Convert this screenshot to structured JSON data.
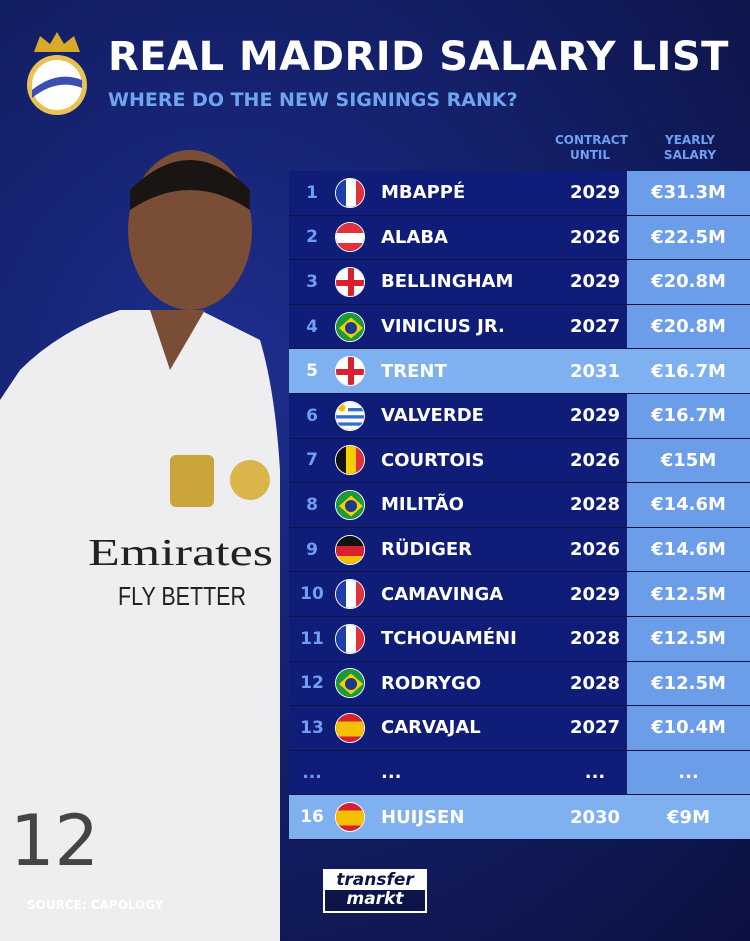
{
  "header": {
    "title": "REAL MADRID SALARY LIST",
    "subtitle": "WHERE DO THE NEW SIGNINGS RANK?"
  },
  "columns": {
    "contract": "CONTRACT UNTIL",
    "salary": "YEARLY SALARY"
  },
  "rows": [
    {
      "rank": "1",
      "flag": "france",
      "name": "MBAPPÉ",
      "contract": "2029",
      "salary": "€31.3M"
    },
    {
      "rank": "2",
      "flag": "austria",
      "name": "ALABA",
      "contract": "2026",
      "salary": "€22.5M"
    },
    {
      "rank": "3",
      "flag": "england",
      "name": "BELLINGHAM",
      "contract": "2029",
      "salary": "€20.8M"
    },
    {
      "rank": "4",
      "flag": "brazil",
      "name": "VINICIUS JR.",
      "contract": "2027",
      "salary": "€20.8M"
    },
    {
      "rank": "5",
      "flag": "england",
      "name": "TRENT",
      "contract": "2031",
      "salary": "€16.7M",
      "highlight": true
    },
    {
      "rank": "6",
      "flag": "uruguay",
      "name": "VALVERDE",
      "contract": "2029",
      "salary": "€16.7M"
    },
    {
      "rank": "7",
      "flag": "belgium",
      "name": "COURTOIS",
      "contract": "2026",
      "salary": "€15M"
    },
    {
      "rank": "8",
      "flag": "brazil",
      "name": "MILITÃO",
      "contract": "2028",
      "salary": "€14.6M"
    },
    {
      "rank": "9",
      "flag": "germany",
      "name": "RÜDIGER",
      "contract": "2026",
      "salary": "€14.6M"
    },
    {
      "rank": "10",
      "flag": "france",
      "name": "CAMAVINGA",
      "contract": "2029",
      "salary": "€12.5M"
    },
    {
      "rank": "11",
      "flag": "france",
      "name": "TCHOUAMÉNI",
      "contract": "2028",
      "salary": "€12.5M"
    },
    {
      "rank": "12",
      "flag": "brazil",
      "name": "RODRYGO",
      "contract": "2028",
      "salary": "€12.5M"
    },
    {
      "rank": "13",
      "flag": "spain",
      "name": "CARVAJAL",
      "contract": "2027",
      "salary": "€10.4M"
    },
    {
      "rank": "...",
      "flag": "",
      "name": "...",
      "contract": "...",
      "salary": "..."
    },
    {
      "rank": "16",
      "flag": "spain",
      "name": "HUIJSEN",
      "contract": "2030",
      "salary": "€9M",
      "highlight": true
    }
  ],
  "footer": {
    "source": "SOURCE: CAPOLOGY",
    "logo": "transfer markt"
  },
  "jersey": {
    "sponsor": "Emirates",
    "tagline": "FLY BETTER",
    "number": "12"
  },
  "colors": {
    "background": "#14206a",
    "row": "#0f1c78",
    "highlight": "#7fb0ef",
    "salary_col": "#6b9de8",
    "accent": "#6f9ff0"
  }
}
